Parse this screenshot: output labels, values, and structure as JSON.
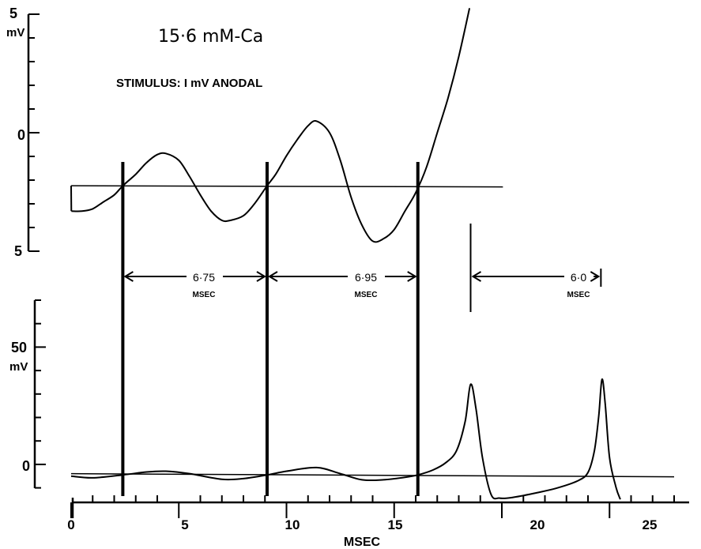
{
  "figure": {
    "condition": "15·6 mM-Ca",
    "stimulus": "STIMULUS: I mV ANODAL",
    "ink_color": "#000000",
    "background_color": "#ffffff"
  },
  "chart_data": [
    {
      "type": "line",
      "panel": "upper",
      "title": "15·6 mM-Ca",
      "subtitle": "STIMULUS: I mV ANODAL",
      "ylabel": "mV",
      "ylim": [
        5,
        -5
      ],
      "yticks": [
        {
          "value": 5,
          "label": "5"
        },
        {
          "value": 0,
          "label": "0"
        },
        {
          "value": -5,
          "label": "5"
        }
      ],
      "xlim": [
        0,
        25
      ],
      "reference_level_mV": -2.3,
      "reference_x_range": [
        0,
        19.5
      ],
      "series": [
        {
          "x": [
            0,
            0.01,
            0.5,
            1.0,
            1.5,
            2.0,
            2.4,
            3.0,
            3.5,
            4.0,
            4.4,
            5.0,
            5.5,
            6.0,
            6.5,
            7.0,
            7.4,
            8.0,
            8.5,
            9.1,
            9.5,
            10.0,
            10.5,
            11.0,
            11.4,
            12.0,
            12.5,
            13.0,
            13.5,
            14.0,
            14.5,
            15.0,
            15.5,
            16.0,
            16.5,
            17.0,
            17.5,
            18.0,
            18.5
          ],
          "y": [
            -2.3,
            -3.4,
            -3.4,
            -3.3,
            -3.0,
            -2.7,
            -2.3,
            -1.8,
            -1.3,
            -0.95,
            -0.9,
            -1.2,
            -1.9,
            -2.7,
            -3.4,
            -3.8,
            -3.8,
            -3.6,
            -3.1,
            -2.3,
            -1.8,
            -1.0,
            -0.3,
            0.3,
            0.5,
            0.0,
            -1.2,
            -2.8,
            -4.0,
            -4.7,
            -4.6,
            -4.2,
            -3.4,
            -2.6,
            -1.5,
            0.0,
            1.5,
            3.3,
            5.4
          ]
        }
      ]
    },
    {
      "type": "line",
      "panel": "lower",
      "xlabel": "MSEC",
      "ylabel": "mV",
      "ylim": [
        -10,
        75
      ],
      "yticks": [
        {
          "value": 50,
          "label": "50"
        },
        {
          "value": 0,
          "label": "0"
        }
      ],
      "xlim": [
        0,
        25
      ],
      "xticks": [
        0,
        5,
        10,
        15,
        20,
        25
      ],
      "reference_level_mV": -1.5,
      "reference_x_range": [
        0,
        28
      ],
      "series": [
        {
          "x": [
            0,
            1,
            2.4,
            3.5,
            4.4,
            5.5,
            7.0,
            8.0,
            9.1,
            10.0,
            11.4,
            12.5,
            13.5,
            14.5,
            15.5,
            16.1,
            16.8,
            17.4,
            17.9,
            18.3,
            18.55,
            18.8,
            19.1,
            19.5,
            19.9,
            20.5,
            21.5,
            22.5,
            23.5,
            24.0,
            24.3,
            24.5,
            24.65,
            24.8,
            25.0,
            25.3,
            25.5
          ],
          "y": [
            -2.5,
            -3.2,
            -2.0,
            -0.8,
            -0.5,
            -1.5,
            -3.8,
            -3.5,
            -2.0,
            -0.5,
            1.0,
            -1.5,
            -4.0,
            -4.0,
            -3.0,
            -2.0,
            0.0,
            3.0,
            8.0,
            20.0,
            35.0,
            25.0,
            5.0,
            -10.0,
            -11.5,
            -11.2,
            -9.5,
            -7.5,
            -4.5,
            -1.0,
            8.0,
            22.0,
            37.0,
            27.0,
            5.0,
            -7.0,
            -12.0
          ]
        }
      ]
    }
  ],
  "intervals": [
    {
      "value": "6·75",
      "unit": "MSEC",
      "from_ms": 2.4,
      "to_ms": 9.1
    },
    {
      "value": "6·95",
      "unit": "MSEC",
      "from_ms": 9.1,
      "to_ms": 16.1
    },
    {
      "value": "6·0",
      "unit": "MSEC",
      "from_ms": 18.55,
      "to_ms": 24.6
    }
  ],
  "marker_lines_ms": [
    2.4,
    9.1,
    16.1
  ],
  "spike_markers_ms": [
    18.55,
    24.6
  ],
  "x_axis": {
    "label": "MSEC",
    "tick_labels": [
      "0",
      "5",
      "10",
      "15",
      "20",
      "25"
    ]
  }
}
